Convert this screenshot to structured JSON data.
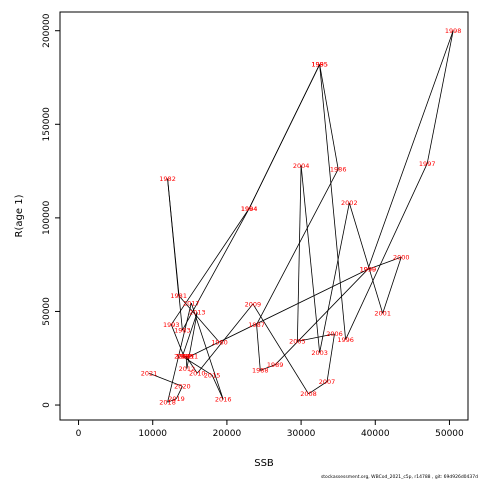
{
  "chart_data": {
    "type": "line",
    "title": "",
    "xlabel": "SSB",
    "ylabel": "R(age 1)",
    "xlim": [
      -2500,
      52500
    ],
    "ylim": [
      -8000,
      210000
    ],
    "x_ticks": [
      0,
      10000,
      20000,
      30000,
      40000,
      50000
    ],
    "y_ticks": [
      0,
      50000,
      100000,
      150000,
      200000
    ],
    "grid": false,
    "line_color": "#000000",
    "label_color": "#ff0000",
    "points": [
      {
        "year": "1980",
        "x": 19000,
        "y": 33500
      },
      {
        "year": "1981",
        "x": 13500,
        "y": 58500
      },
      {
        "year": "1982",
        "x": 12000,
        "y": 121000
      },
      {
        "year": "1983",
        "x": 14000,
        "y": 40000
      },
      {
        "year": "1984",
        "x": 23000,
        "y": 105000
      },
      {
        "year": "1985",
        "x": 32500,
        "y": 182000
      },
      {
        "year": "1986",
        "x": 35000,
        "y": 126000
      },
      {
        "year": "1987",
        "x": 24000,
        "y": 43000
      },
      {
        "year": "1988",
        "x": 24500,
        "y": 18500
      },
      {
        "year": "1989",
        "x": 26500,
        "y": 21500
      },
      {
        "year": "1990",
        "x": 39000,
        "y": 72500
      },
      {
        "year": "1991",
        "x": 15000,
        "y": 26000
      },
      {
        "year": "1992",
        "x": 14200,
        "y": 26000
      },
      {
        "year": "1993",
        "x": 12500,
        "y": 43000
      },
      {
        "year": "1994",
        "x": 23000,
        "y": 105000
      },
      {
        "year": "1995",
        "x": 32500,
        "y": 182000
      },
      {
        "year": "1996",
        "x": 36000,
        "y": 35000
      },
      {
        "year": "1997",
        "x": 47000,
        "y": 129000
      },
      {
        "year": "1998",
        "x": 50500,
        "y": 200000
      },
      {
        "year": "1999",
        "x": 39000,
        "y": 72500
      },
      {
        "year": "2000",
        "x": 43500,
        "y": 79000
      },
      {
        "year": "2001",
        "x": 41000,
        "y": 49000
      },
      {
        "year": "2002",
        "x": 36500,
        "y": 108000
      },
      {
        "year": "2003",
        "x": 32500,
        "y": 28000
      },
      {
        "year": "2004",
        "x": 30000,
        "y": 128000
      },
      {
        "year": "2005",
        "x": 29500,
        "y": 34000
      },
      {
        "year": "2006",
        "x": 34500,
        "y": 38000
      },
      {
        "year": "2007",
        "x": 33500,
        "y": 12500
      },
      {
        "year": "2008",
        "x": 31000,
        "y": 6000
      },
      {
        "year": "2009",
        "x": 23500,
        "y": 54000
      },
      {
        "year": "2010",
        "x": 16000,
        "y": 17000
      },
      {
        "year": "2011",
        "x": 14500,
        "y": 26000
      },
      {
        "year": "2012",
        "x": 14600,
        "y": 19500
      },
      {
        "year": "2013",
        "x": 16000,
        "y": 49500
      },
      {
        "year": "2014",
        "x": 14000,
        "y": 26000
      },
      {
        "year": "2015",
        "x": 18000,
        "y": 16000
      },
      {
        "year": "2016",
        "x": 19500,
        "y": 3000
      },
      {
        "year": "2017",
        "x": 15200,
        "y": 54500
      },
      {
        "year": "2018",
        "x": 12000,
        "y": 1500
      },
      {
        "year": "2019",
        "x": 13200,
        "y": 3500
      },
      {
        "year": "2020",
        "x": 14000,
        "y": 10000
      },
      {
        "year": "2021",
        "x": 9500,
        "y": 17000
      }
    ],
    "footer": "stockassessment.org, WBCod_2021_c5p, r14788 , git: 69d926d0437d"
  }
}
